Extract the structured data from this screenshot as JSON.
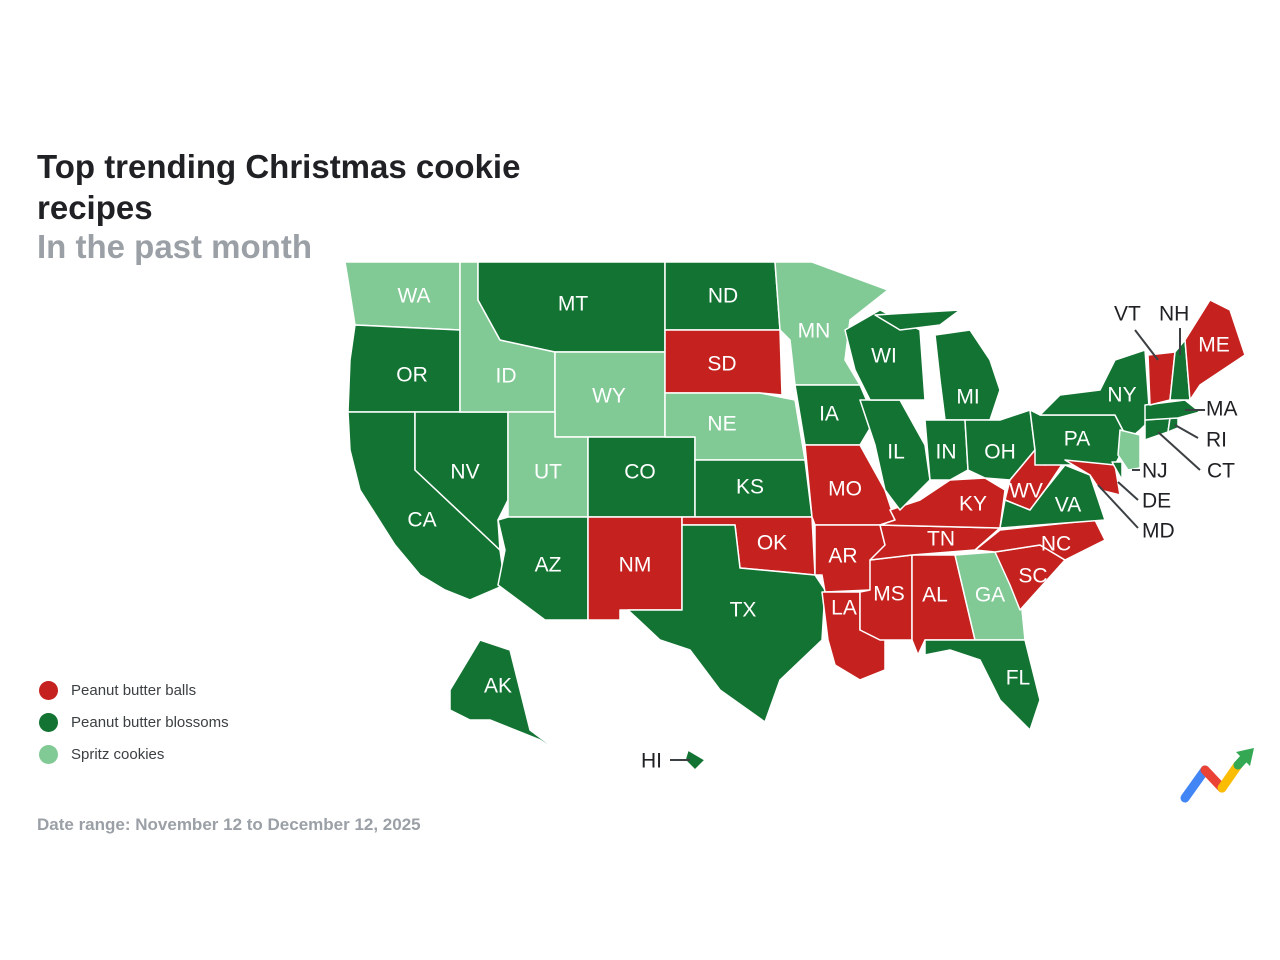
{
  "title": "Top trending Christmas cookie recipes",
  "subtitle": "In the past month",
  "date_range": "Date range: November 12 to December 12, 2025",
  "colors": {
    "balls": "#c5221f",
    "blossoms": "#137333",
    "spritz": "#81c995"
  },
  "legend": [
    {
      "key": "balls",
      "label": "Peanut butter balls"
    },
    {
      "key": "blossoms",
      "label": "Peanut butter blossoms"
    },
    {
      "key": "spritz",
      "label": "Spritz cookies"
    }
  ],
  "states": {
    "WA": "spritz",
    "OR": "blossoms",
    "CA": "blossoms",
    "NV": "blossoms",
    "ID": "spritz",
    "MT": "blossoms",
    "WY": "spritz",
    "UT": "spritz",
    "AZ": "blossoms",
    "CO": "blossoms",
    "NM": "balls",
    "ND": "blossoms",
    "SD": "balls",
    "NE": "spritz",
    "KS": "blossoms",
    "OK": "balls",
    "TX": "blossoms",
    "MN": "spritz",
    "IA": "blossoms",
    "MO": "balls",
    "AR": "balls",
    "LA": "balls",
    "MS": "balls",
    "AL": "balls",
    "GA": "spritz",
    "FL": "blossoms",
    "SC": "balls",
    "NC": "balls",
    "TN": "balls",
    "KY": "balls",
    "IL": "blossoms",
    "WI": "blossoms",
    "MI": "blossoms",
    "IN": "blossoms",
    "OH": "blossoms",
    "WV": "balls",
    "VA": "blossoms",
    "PA": "blossoms",
    "NY": "blossoms",
    "MD": "balls",
    "DE": "blossoms",
    "NJ": "spritz",
    "CT": "blossoms",
    "RI": "blossoms",
    "MA": "blossoms",
    "VT": "balls",
    "NH": "blossoms",
    "ME": "balls",
    "AK": "blossoms",
    "HI": "blossoms"
  },
  "labels": {
    "WA": "WA",
    "OR": "OR",
    "CA": "CA",
    "NV": "NV",
    "ID": "ID",
    "MT": "MT",
    "WY": "WY",
    "UT": "UT",
    "AZ": "AZ",
    "CO": "CO",
    "NM": "NM",
    "ND": "ND",
    "SD": "SD",
    "NE": "NE",
    "KS": "KS",
    "OK": "OK",
    "TX": "TX",
    "MN": "MN",
    "IA": "IA",
    "MO": "MO",
    "AR": "AR",
    "LA": "LA",
    "MS": "MS",
    "AL": "AL",
    "GA": "GA",
    "FL": "FL",
    "SC": "SC",
    "NC": "NC",
    "TN": "TN",
    "KY": "KY",
    "IL": "IL",
    "WI": "WI",
    "MI": "MI",
    "IN": "IN",
    "OH": "OH",
    "WV": "WV",
    "VA": "VA",
    "PA": "PA",
    "NY": "NY",
    "MD": "MD",
    "DE": "DE",
    "NJ": "NJ",
    "CT": "CT",
    "RI": "RI",
    "MA": "MA",
    "VT": "VT",
    "NH": "NH",
    "ME": "ME",
    "AK": "AK",
    "HI": "HI"
  }
}
